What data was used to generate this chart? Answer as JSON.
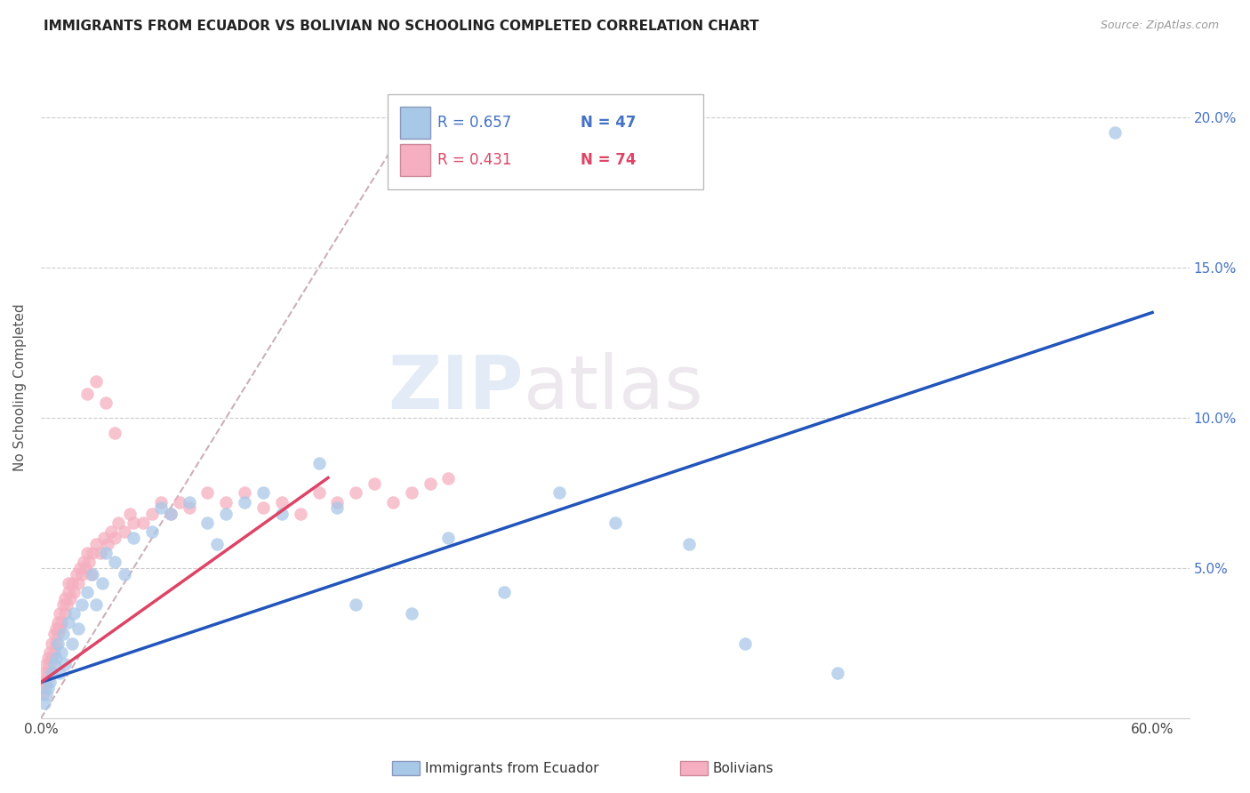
{
  "title": "IMMIGRANTS FROM ECUADOR VS BOLIVIAN NO SCHOOLING COMPLETED CORRELATION CHART",
  "source": "Source: ZipAtlas.com",
  "ylabel": "No Schooling Completed",
  "xlim": [
    0,
    0.62
  ],
  "ylim": [
    0,
    0.22
  ],
  "x_ticks": [
    0.0,
    0.1,
    0.2,
    0.3,
    0.4,
    0.5,
    0.6
  ],
  "y_ticks": [
    0.0,
    0.05,
    0.1,
    0.15,
    0.2
  ],
  "y_tick_labels_right": [
    "",
    "5.0%",
    "10.0%",
    "15.0%",
    "20.0%"
  ],
  "legend_label1": "Immigrants from Ecuador",
  "legend_label2": "Bolivians",
  "r1": 0.657,
  "n1": 47,
  "r2": 0.431,
  "n2": 74,
  "color_ecuador": "#a8c8e8",
  "color_bolivia": "#f5afc0",
  "line_color_ecuador": "#2255bb",
  "line_color_bolivia": "#dd4466",
  "diag_color": "#ccb0b8",
  "ecuador_x": [
    0.002,
    0.003,
    0.004,
    0.005,
    0.006,
    0.007,
    0.008,
    0.009,
    0.01,
    0.011,
    0.012,
    0.013,
    0.015,
    0.017,
    0.018,
    0.02,
    0.022,
    0.025,
    0.028,
    0.03,
    0.033,
    0.035,
    0.04,
    0.045,
    0.05,
    0.06,
    0.065,
    0.07,
    0.08,
    0.09,
    0.095,
    0.1,
    0.11,
    0.12,
    0.13,
    0.15,
    0.16,
    0.17,
    0.2,
    0.22,
    0.25,
    0.28,
    0.31,
    0.35,
    0.38,
    0.43,
    0.58
  ],
  "ecuador_y": [
    0.005,
    0.008,
    0.01,
    0.012,
    0.015,
    0.018,
    0.02,
    0.025,
    0.015,
    0.022,
    0.028,
    0.018,
    0.032,
    0.025,
    0.035,
    0.03,
    0.038,
    0.042,
    0.048,
    0.038,
    0.045,
    0.055,
    0.052,
    0.048,
    0.06,
    0.062,
    0.07,
    0.068,
    0.072,
    0.065,
    0.058,
    0.068,
    0.072,
    0.075,
    0.068,
    0.085,
    0.07,
    0.038,
    0.035,
    0.06,
    0.042,
    0.075,
    0.065,
    0.058,
    0.025,
    0.015,
    0.195
  ],
  "bolivia_x": [
    0.001,
    0.001,
    0.002,
    0.002,
    0.003,
    0.003,
    0.004,
    0.004,
    0.005,
    0.005,
    0.006,
    0.006,
    0.007,
    0.007,
    0.008,
    0.008,
    0.009,
    0.009,
    0.01,
    0.01,
    0.011,
    0.012,
    0.013,
    0.013,
    0.014,
    0.015,
    0.015,
    0.016,
    0.017,
    0.018,
    0.019,
    0.02,
    0.021,
    0.022,
    0.023,
    0.024,
    0.025,
    0.026,
    0.027,
    0.028,
    0.03,
    0.032,
    0.034,
    0.036,
    0.038,
    0.04,
    0.042,
    0.045,
    0.048,
    0.05,
    0.055,
    0.06,
    0.065,
    0.07,
    0.075,
    0.08,
    0.09,
    0.1,
    0.11,
    0.12,
    0.13,
    0.14,
    0.15,
    0.16,
    0.17,
    0.18,
    0.19,
    0.2,
    0.21,
    0.22,
    0.025,
    0.03,
    0.035,
    0.04
  ],
  "bolivia_y": [
    0.008,
    0.012,
    0.01,
    0.015,
    0.012,
    0.018,
    0.015,
    0.02,
    0.018,
    0.022,
    0.02,
    0.025,
    0.022,
    0.028,
    0.025,
    0.03,
    0.028,
    0.032,
    0.03,
    0.035,
    0.032,
    0.038,
    0.035,
    0.04,
    0.038,
    0.042,
    0.045,
    0.04,
    0.045,
    0.042,
    0.048,
    0.045,
    0.05,
    0.048,
    0.052,
    0.05,
    0.055,
    0.052,
    0.048,
    0.055,
    0.058,
    0.055,
    0.06,
    0.058,
    0.062,
    0.06,
    0.065,
    0.062,
    0.068,
    0.065,
    0.065,
    0.068,
    0.072,
    0.068,
    0.072,
    0.07,
    0.075,
    0.072,
    0.075,
    0.07,
    0.072,
    0.068,
    0.075,
    0.072,
    0.075,
    0.078,
    0.072,
    0.075,
    0.078,
    0.08,
    0.108,
    0.112,
    0.105,
    0.095
  ],
  "ecuador_line_x": [
    0.0,
    0.6
  ],
  "ecuador_line_y": [
    0.012,
    0.135
  ],
  "bolivia_line_x": [
    0.0,
    0.155
  ],
  "bolivia_line_y": [
    0.012,
    0.08
  ],
  "diag_line_x": [
    0.0,
    0.205
  ],
  "diag_line_y": [
    0.0,
    0.205
  ]
}
